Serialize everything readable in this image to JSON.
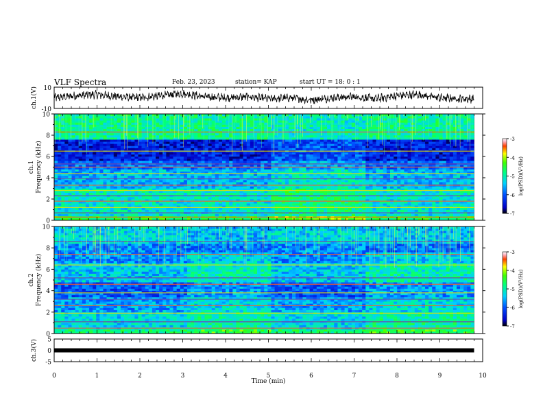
{
  "header": {
    "title": "VLF Spectra",
    "date": "Feb. 23, 2023",
    "station": "station= KAP",
    "start": "start  UT =   18: 0  : 1"
  },
  "chart_data": [
    {
      "type": "line",
      "panel": "ch1-waveform",
      "ylabel": "ch.1(V)",
      "ylim": [
        -10,
        10
      ],
      "yticks": [
        "10",
        "-10"
      ],
      "xlim": [
        0,
        10
      ],
      "series_style": "noisy waveform, mostly between -8 and +8 V",
      "envelope_x": [
        0,
        0.5,
        1,
        1.5,
        2,
        2.5,
        3,
        3.5,
        4,
        4.5,
        5,
        5.5,
        6,
        6.5,
        7,
        7.5,
        8,
        8.5,
        9,
        9.5,
        9.8
      ],
      "envelope_y": [
        0,
        2,
        3,
        1,
        0,
        2,
        4,
        1,
        0,
        1,
        -1,
        0,
        -2,
        0,
        1,
        -1,
        2,
        3,
        0,
        -1,
        -1
      ]
    },
    {
      "type": "heatmap",
      "panel": "ch1-spectrogram",
      "ylabel": "ch.1\nFrequency (kHz)",
      "yticks": [
        "0",
        "2",
        "4",
        "6",
        "8",
        "10"
      ],
      "ylim": [
        0,
        10
      ],
      "xlim": [
        0,
        9.8
      ],
      "colorbar": {
        "label": "log(PSD)(V²/Hz)",
        "ticks": [
          "-3",
          "-4",
          "-5",
          "-6",
          "-7"
        ],
        "range": [
          -7,
          -3
        ]
      },
      "segments_min": [
        0,
        5.1,
        7.3,
        9.8
      ],
      "bands": [
        {
          "f": [
            0,
            0.5
          ],
          "v": -4.6
        },
        {
          "f": [
            0.5,
            2.0
          ],
          "v": -5.2
        },
        {
          "f": [
            2.0,
            3.0
          ],
          "v": -5.1
        },
        {
          "f": [
            3.0,
            4.8
          ],
          "v": -5.5
        },
        {
          "f": [
            4.8,
            5.6
          ],
          "v": -5.9
        },
        {
          "f": [
            5.6,
            7.6
          ],
          "v": -6.4
        },
        {
          "f": [
            7.6,
            10.0
          ],
          "v": -4.9
        }
      ],
      "lines_khz": [
        0.3,
        0.7,
        1.2,
        1.8,
        2.3,
        2.8,
        3.3,
        3.9,
        4.4,
        5.0,
        5.3,
        6.5,
        8.3
      ]
    },
    {
      "type": "heatmap",
      "panel": "ch2-spectrogram",
      "ylabel": "ch.2\nFrequency (kHz)",
      "yticks": [
        "0",
        "2",
        "4",
        "6",
        "8",
        "10"
      ],
      "ylim": [
        0,
        10
      ],
      "xlim": [
        0,
        9.8
      ],
      "colorbar": {
        "label": "log(PSD)(V²/Hz)",
        "ticks": [
          "-3",
          "-4",
          "-5",
          "-6",
          "-7"
        ],
        "range": [
          -7,
          -3
        ]
      },
      "segments_min": [
        0,
        3.1,
        5.1,
        7.3,
        9.8
      ],
      "bands": [
        {
          "f": [
            0,
            0.5
          ],
          "v": -4.8
        },
        {
          "f": [
            0.5,
            2.0
          ],
          "v": -5.3
        },
        {
          "f": [
            2.0,
            3.5
          ],
          "v": -5.6
        },
        {
          "f": [
            3.5,
            4.8
          ],
          "v": -6.0
        },
        {
          "f": [
            4.8,
            6.6
          ],
          "v": -5.4
        },
        {
          "f": [
            6.6,
            8.5
          ],
          "v": -5.7
        },
        {
          "f": [
            8.5,
            10.0
          ],
          "v": -5.3
        }
      ],
      "lines_khz": [
        0.5,
        1.1,
        1.9,
        2.6,
        3.2,
        3.8,
        4.6,
        5.2,
        6.4,
        7.4,
        8.6
      ]
    },
    {
      "type": "line",
      "panel": "ch3-waveform",
      "ylabel": "ch.3(V)",
      "ylim": [
        -5,
        5
      ],
      "yticks": [
        "5",
        "0",
        "-5"
      ],
      "xlim": [
        0,
        10
      ],
      "constant_value": 0
    }
  ],
  "xaxis": {
    "label": "Time (min)",
    "ticks": [
      "0",
      "1",
      "2",
      "3",
      "4",
      "5",
      "6",
      "7",
      "8",
      "9",
      "10"
    ],
    "range": [
      0,
      10
    ]
  }
}
